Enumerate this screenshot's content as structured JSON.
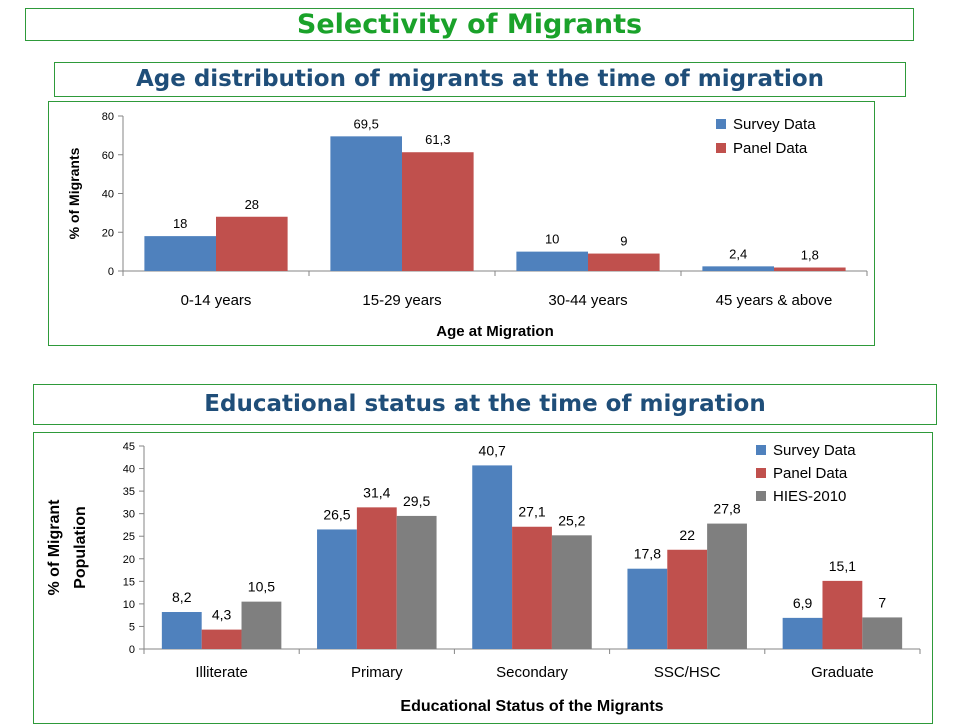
{
  "main_title": "Selectivity of Migrants",
  "chart1_title": "Age distribution of migrants at the time of migration",
  "chart2_title": "Educational status at the time of migration",
  "colors": {
    "survey": "#4f81bd",
    "panel": "#c0504d",
    "hies": "#7f7f7f",
    "title_green": "#1aa22a",
    "title_blue": "#1f4e79",
    "border": "#2e9a3a"
  },
  "chart_data": [
    {
      "type": "bar",
      "categories": [
        "0-14 years",
        "15-29 years",
        "30-44 years",
        "45 years & above"
      ],
      "series": [
        {
          "name": "Survey Data",
          "values": [
            18,
            69.5,
            10,
            2.4
          ],
          "labels": [
            "18",
            "69,5",
            "10",
            "2,4"
          ]
        },
        {
          "name": "Panel Data",
          "values": [
            28,
            61.3,
            9,
            1.8
          ],
          "labels": [
            "28",
            "61,3",
            "9",
            "1,8"
          ]
        }
      ],
      "yticks": [
        0,
        20,
        40,
        60,
        80
      ],
      "ylim": [
        0,
        80
      ],
      "xlabel": "Age at Migration",
      "ylabel": "% of Migrants",
      "legend": "top-right",
      "grid": false
    },
    {
      "type": "bar",
      "categories": [
        "Illiterate",
        "Primary",
        "Secondary",
        "SSC/HSC",
        "Graduate"
      ],
      "series": [
        {
          "name": "Survey Data",
          "values": [
            8.2,
            26.5,
            40.7,
            17.8,
            6.9
          ],
          "labels": [
            "8,2",
            "26,5",
            "40,7",
            "17,8",
            "6,9"
          ]
        },
        {
          "name": "Panel Data",
          "values": [
            4.3,
            31.4,
            27.1,
            22,
            15.1
          ],
          "labels": [
            "4,3",
            "31,4",
            "27,1",
            "22",
            "15,1"
          ]
        },
        {
          "name": "HIES-2010",
          "values": [
            10.5,
            29.5,
            25.2,
            27.8,
            7
          ],
          "labels": [
            "10,5",
            "29,5",
            "25,2",
            "27,8",
            "7"
          ]
        }
      ],
      "yticks": [
        0,
        5,
        10,
        15,
        20,
        25,
        30,
        35,
        40,
        45
      ],
      "ylim": [
        0,
        45
      ],
      "xlabel": "Educational Status of the Migrants",
      "ylabel": [
        "% of Migrant",
        "Population"
      ],
      "legend": "top-right",
      "grid": false
    }
  ]
}
